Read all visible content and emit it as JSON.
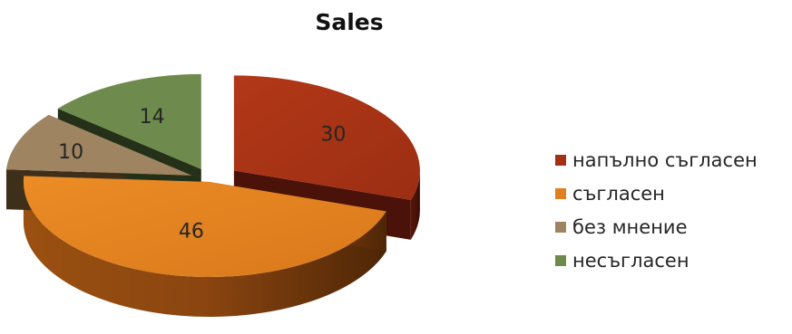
{
  "chart_data": {
    "type": "pie",
    "title": "Sales",
    "categories": [
      "напълно съгласен",
      "съгласен",
      "без мнение",
      "несъгласен"
    ],
    "values": [
      30,
      46,
      10,
      14
    ],
    "data_labels": [
      "30",
      "46",
      "10",
      "14"
    ],
    "colors": [
      "#A43114",
      "#E07F1D",
      "#9E8460",
      "#6E8B4D"
    ],
    "style": "3d-exploded",
    "legend_position": "right"
  }
}
